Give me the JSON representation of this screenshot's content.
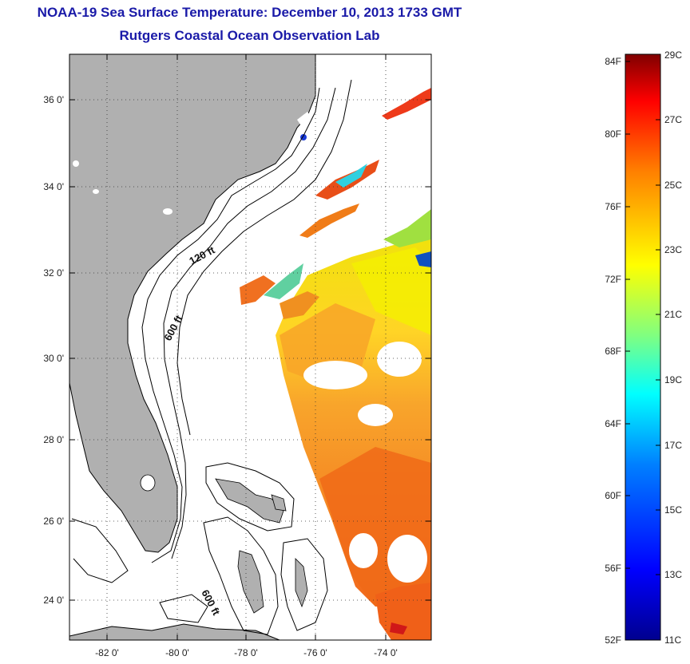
{
  "header": {
    "title": "NOAA-19 Sea Surface Temperature:  December 10, 2013 1733 GMT",
    "subtitle": "Rutgers Coastal Ocean Observation Lab"
  },
  "axes": {
    "lat_labels": [
      "36 0'",
      "34 0'",
      "32 0'",
      "30 0'",
      "28 0'",
      "26 0'",
      "24 0'"
    ],
    "lon_labels": [
      "-82 0'",
      "-80 0'",
      "-78 0'",
      "-76 0'",
      "-74 0'"
    ]
  },
  "contours": {
    "label_120": "120 ft",
    "label_600_north": "600 ft",
    "label_600_south": "600 ft"
  },
  "colorbar": {
    "fahrenheit_labels": [
      "84F",
      "80F",
      "76F",
      "72F",
      "68F",
      "64F",
      "60F",
      "56F",
      "52F"
    ],
    "celsius_labels": [
      "29C",
      "27C",
      "25C",
      "23C",
      "21C",
      "19C",
      "17C",
      "15C",
      "13C",
      "11C"
    ],
    "range_celsius": [
      11,
      29
    ],
    "colors": [
      "#00008f",
      "#0000ff",
      "#0080ff",
      "#00ffff",
      "#80ff80",
      "#ffff00",
      "#ff8000",
      "#ff0000",
      "#800000"
    ]
  },
  "colors": {
    "land": "#b0b0b0",
    "title": "#1a1aa8"
  }
}
